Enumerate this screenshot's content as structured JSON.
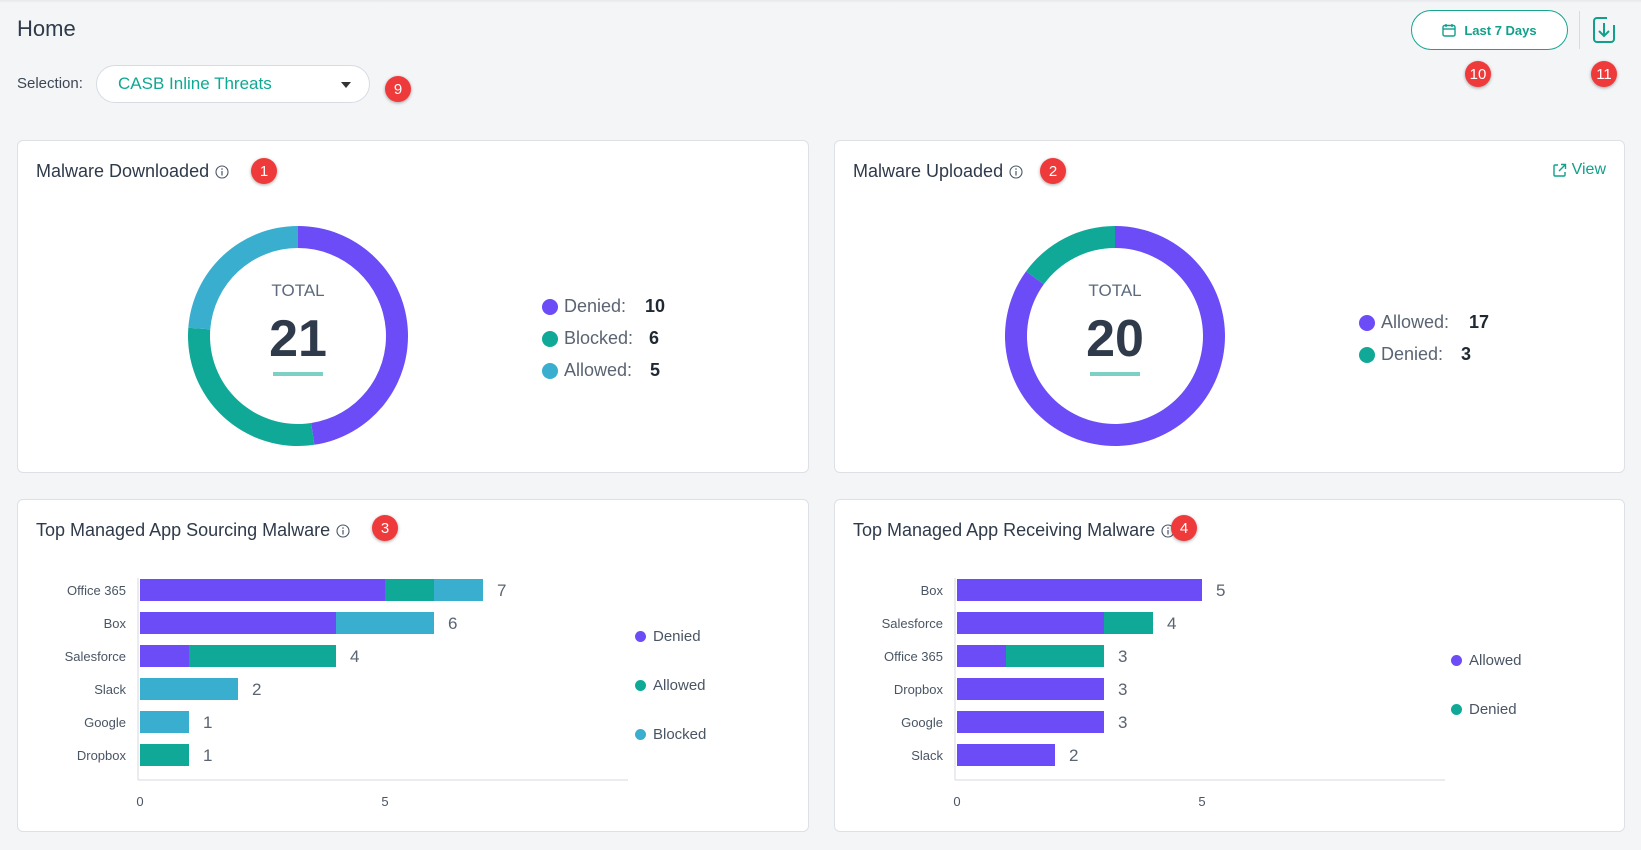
{
  "header": {
    "title": "Home"
  },
  "selection": {
    "label": "Selection:",
    "value": "CASB Inline Threats"
  },
  "toolbar": {
    "date_range_label": "Last 7 Days"
  },
  "badges": {
    "n1": "1",
    "n2": "2",
    "n3": "3",
    "n4": "4",
    "n9": "9",
    "n10": "10",
    "n11": "11"
  },
  "colors": {
    "accent": "#11a08b",
    "purple": "#6b4cf6",
    "teal": "#10a998",
    "blue": "#3aaecf",
    "badge": "#ee3a3a"
  },
  "cards": {
    "malware_downloaded": {
      "title": "Malware Downloaded",
      "total_label": "TOTAL",
      "total": "21",
      "legend": [
        {
          "label": "Denied:",
          "value": "10"
        },
        {
          "label": "Blocked:",
          "value": "6"
        },
        {
          "label": "Allowed:",
          "value": "5"
        }
      ]
    },
    "malware_uploaded": {
      "title": "Malware Uploaded",
      "view_label": "View",
      "total_label": "TOTAL",
      "total": "20",
      "legend": [
        {
          "label": "Allowed:",
          "value": "17"
        },
        {
          "label": "Denied:",
          "value": "3"
        }
      ]
    },
    "top_sourcing": {
      "title": "Top Managed App Sourcing Malware",
      "legend": [
        {
          "label": "Denied"
        },
        {
          "label": "Allowed"
        },
        {
          "label": "Blocked"
        }
      ]
    },
    "top_receiving": {
      "title": "Top Managed App Receiving Malware",
      "legend": [
        {
          "label": "Allowed"
        },
        {
          "label": "Denied"
        }
      ]
    }
  },
  "chart_data": [
    {
      "type": "pie",
      "variant": "donut",
      "title": "Malware Downloaded",
      "labels": [
        "Denied",
        "Blocked",
        "Allowed"
      ],
      "values": [
        10,
        6,
        5
      ],
      "colors": [
        "#6b4cf6",
        "#10a998",
        "#3aaecf"
      ]
    },
    {
      "type": "pie",
      "variant": "donut",
      "title": "Malware Uploaded",
      "labels": [
        "Allowed",
        "Denied"
      ],
      "values": [
        17,
        3
      ],
      "colors": [
        "#6b4cf6",
        "#10a998"
      ]
    },
    {
      "type": "bar",
      "orientation": "horizontal",
      "stacked": true,
      "title": "Top Managed App Sourcing Malware",
      "categories": [
        "Office 365",
        "Box",
        "Salesforce",
        "Slack",
        "Google",
        "Dropbox"
      ],
      "series": [
        {
          "name": "Denied",
          "color": "#6b4cf6",
          "values": [
            5,
            4,
            1,
            0,
            0,
            0
          ]
        },
        {
          "name": "Allowed",
          "color": "#10a998",
          "values": [
            1,
            0,
            3,
            0,
            0,
            1
          ]
        },
        {
          "name": "Blocked",
          "color": "#3aaecf",
          "values": [
            1,
            2,
            0,
            2,
            1,
            0
          ]
        }
      ],
      "totals": [
        7,
        6,
        4,
        2,
        1,
        1
      ],
      "xlim": [
        0,
        10
      ],
      "xticks": [
        0,
        5
      ]
    },
    {
      "type": "bar",
      "orientation": "horizontal",
      "stacked": true,
      "title": "Top Managed App Receiving Malware",
      "categories": [
        "Box",
        "Salesforce",
        "Office 365",
        "Dropbox",
        "Google",
        "Slack"
      ],
      "series": [
        {
          "name": "Allowed",
          "color": "#6b4cf6",
          "values": [
            5,
            3,
            1,
            3,
            3,
            2
          ]
        },
        {
          "name": "Denied",
          "color": "#10a998",
          "values": [
            0,
            1,
            2,
            0,
            0,
            0
          ]
        }
      ],
      "totals": [
        5,
        4,
        3,
        3,
        3,
        2
      ],
      "xlim": [
        0,
        10
      ],
      "xticks": [
        0,
        5
      ]
    }
  ]
}
